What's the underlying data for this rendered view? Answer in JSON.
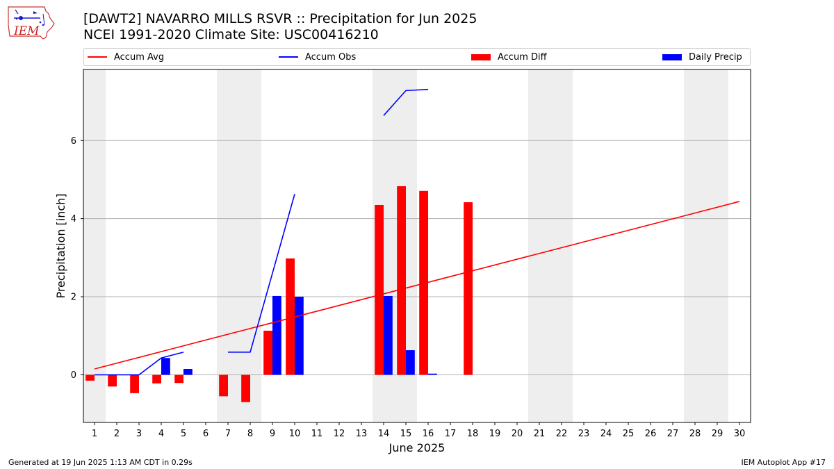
{
  "header": {
    "title_line1": "[DAWT2] NAVARRO MILLS RSVR :: Precipitation for Jun 2025",
    "title_line2": "NCEI 1991-2020 Climate Site: USC00416210",
    "logo_text": "IEM"
  },
  "footer": {
    "generated": "Generated at 19 Jun 2025 1:13 AM CDT in 0.29s",
    "app": "IEM Autoplot App #17"
  },
  "colors": {
    "avg": "#ff0000",
    "obs": "#0000ff",
    "diff": "#ff0000",
    "daily": "#0000ff",
    "weekend_shade": "#eeeeee",
    "grid": "#b0b0b0"
  },
  "chart_data": {
    "type": "bar",
    "title": "[DAWT2] NAVARRO MILLS RSVR :: Precipitation for Jun 2025",
    "subtitle": "NCEI 1991-2020 Climate Site: USC00416210",
    "xlabel": "June 2025",
    "ylabel": "Precipitation [inch]",
    "x": [
      1,
      2,
      3,
      4,
      5,
      6,
      7,
      8,
      9,
      10,
      11,
      12,
      13,
      14,
      15,
      16,
      17,
      18,
      19,
      20,
      21,
      22,
      23,
      24,
      25,
      26,
      27,
      28,
      29,
      30
    ],
    "xlim": [
      0.5,
      30.5
    ],
    "ylim": [
      -1.22,
      7.82
    ],
    "yticks": [
      0,
      2,
      4,
      6
    ],
    "grid": "horizontal",
    "legend_position": "top",
    "weekend_days": [
      1,
      7,
      8,
      14,
      15,
      21,
      22,
      28,
      29
    ],
    "series": [
      {
        "name": "Accum Avg",
        "kind": "line",
        "color": "#ff0000",
        "x": [
          1,
          30
        ],
        "values": [
          0.15,
          4.44
        ]
      },
      {
        "name": "Accum Obs",
        "kind": "line",
        "color": "#0000ff",
        "segments": [
          {
            "x": [
              1,
              2,
              3,
              4,
              5
            ],
            "values": [
              0.0,
              0.0,
              0.0,
              0.43,
              0.58
            ]
          },
          {
            "x": [
              7,
              8,
              9,
              10
            ],
            "values": [
              0.58,
              0.58,
              2.6,
              4.63
            ]
          },
          {
            "x": [
              14,
              15,
              16
            ],
            "values": [
              6.64,
              7.28,
              7.31
            ]
          }
        ]
      },
      {
        "name": "Accum Diff",
        "kind": "bar",
        "color": "#ff0000",
        "x": [
          1,
          2,
          3,
          4,
          5,
          7,
          8,
          9,
          10,
          14,
          15,
          16,
          18
        ],
        "values": [
          -0.15,
          -0.3,
          -0.47,
          -0.22,
          -0.21,
          -0.55,
          -0.7,
          1.13,
          2.98,
          4.35,
          4.83,
          4.71,
          4.42
        ]
      },
      {
        "name": "Daily Precip",
        "kind": "bar",
        "color": "#0000ff",
        "x": [
          4,
          5,
          9,
          10,
          14,
          15,
          16
        ],
        "values": [
          0.43,
          0.15,
          2.02,
          2.0,
          2.02,
          0.63,
          0.03
        ]
      }
    ]
  }
}
